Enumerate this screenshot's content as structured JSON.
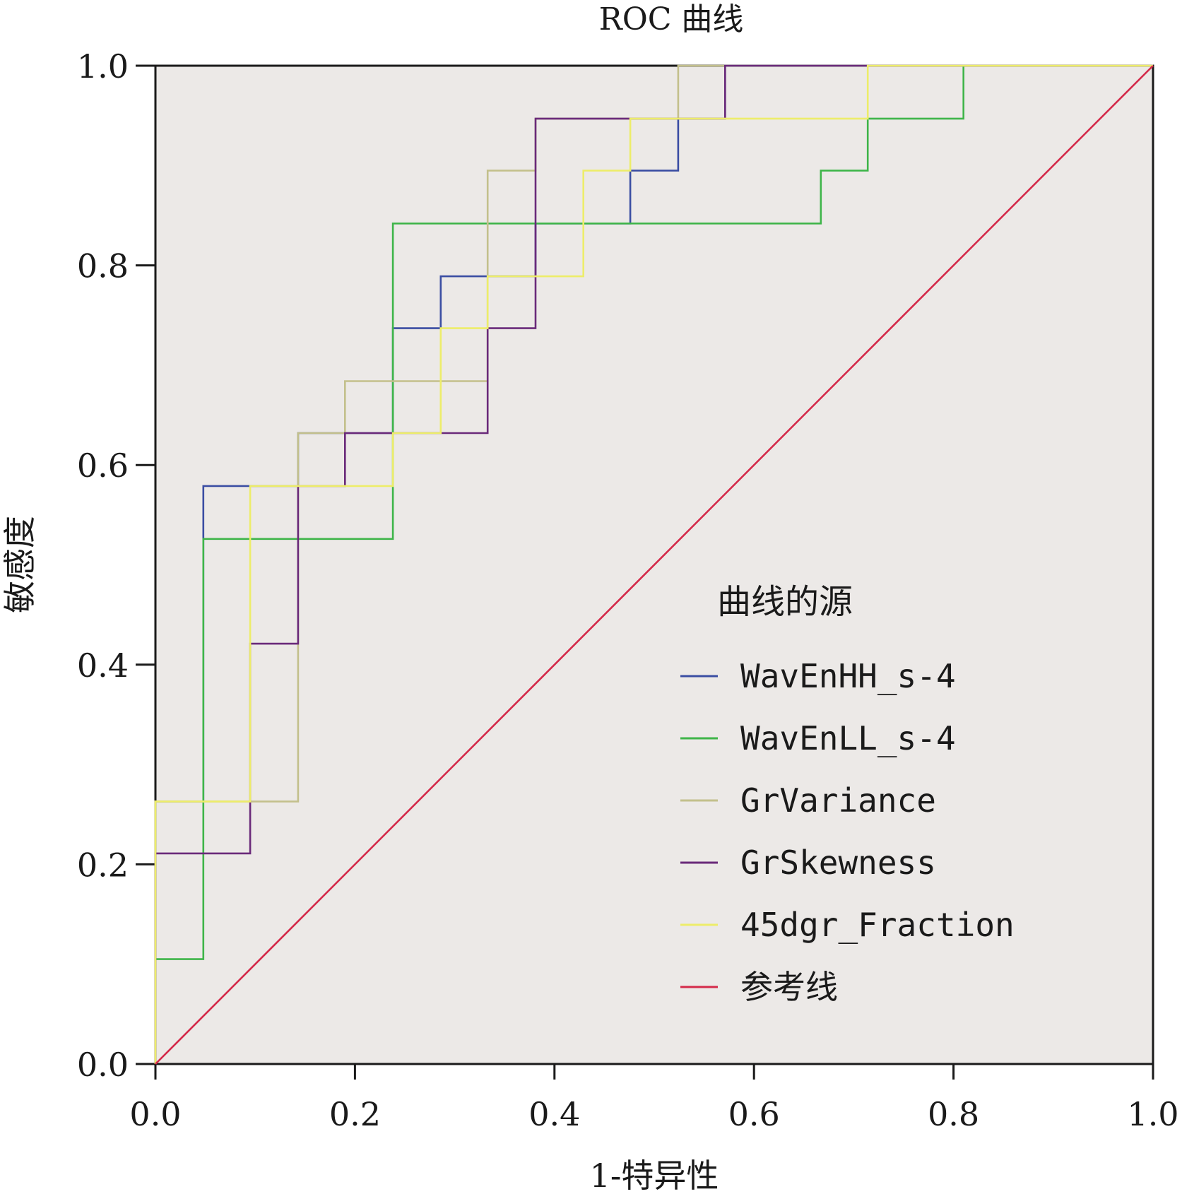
{
  "chart_data": {
    "type": "line",
    "title": "ROC 曲线",
    "xlabel": "1-特异性",
    "ylabel": "敏感度",
    "xlim": [
      0,
      1
    ],
    "ylim": [
      0,
      1
    ],
    "x_ticks": [
      "0.0",
      "0.2",
      "0.4",
      "0.6",
      "0.8",
      "1.0"
    ],
    "y_ticks": [
      "0.0",
      "0.2",
      "0.4",
      "0.6",
      "0.8",
      "1.0"
    ],
    "tick_values": [
      0,
      0.2,
      0.4,
      0.6,
      0.8,
      1.0
    ],
    "grid": false,
    "background": "#ece9e7",
    "legend": {
      "title": "曲线的源",
      "placement": "right-center"
    },
    "series": [
      {
        "name": "WavEnHH_s-4",
        "color": "#3b4ea3",
        "x": [
          0,
          0,
          0.048,
          0.048,
          0.095,
          0.095,
          0.143,
          0.143,
          0.19,
          0.19,
          0.238,
          0.238,
          0.286,
          0.286,
          0.333,
          0.333,
          0.381,
          0.381,
          0.476,
          0.476,
          0.524,
          0.524,
          0.571,
          0.571,
          1.0
        ],
        "y": [
          0,
          0.263,
          0.263,
          0.579,
          0.579,
          0.579,
          0.579,
          0.632,
          0.632,
          0.632,
          0.632,
          0.737,
          0.737,
          0.789,
          0.789,
          0.789,
          0.789,
          0.842,
          0.842,
          0.895,
          0.895,
          0.947,
          0.947,
          1.0,
          1.0
        ]
      },
      {
        "name": "WavEnLL_s-4",
        "color": "#3fb54a",
        "x": [
          0,
          0,
          0.048,
          0.048,
          0.143,
          0.143,
          0.238,
          0.238,
          0.667,
          0.667,
          0.714,
          0.714,
          0.81,
          0.81,
          1.0
        ],
        "y": [
          0,
          0.105,
          0.105,
          0.526,
          0.526,
          0.526,
          0.526,
          0.842,
          0.842,
          0.895,
          0.895,
          0.947,
          0.947,
          1.0,
          1.0
        ]
      },
      {
        "name": "GrVariance",
        "color": "#c3c08c",
        "x": [
          0,
          0,
          0.095,
          0.095,
          0.143,
          0.143,
          0.19,
          0.19,
          0.333,
          0.333,
          0.381,
          0.381,
          0.476,
          0.476,
          0.524,
          0.524,
          1.0
        ],
        "y": [
          0,
          0.263,
          0.263,
          0.263,
          0.263,
          0.632,
          0.632,
          0.684,
          0.684,
          0.895,
          0.895,
          0.947,
          0.947,
          0.947,
          0.947,
          1.0,
          1.0
        ]
      },
      {
        "name": "GrSkewness",
        "color": "#6a2a7a",
        "x": [
          0,
          0,
          0.095,
          0.095,
          0.143,
          0.143,
          0.19,
          0.19,
          0.333,
          0.333,
          0.381,
          0.381,
          0.476,
          0.476,
          0.571,
          0.571,
          1.0
        ],
        "y": [
          0,
          0.211,
          0.211,
          0.421,
          0.421,
          0.579,
          0.579,
          0.632,
          0.632,
          0.737,
          0.737,
          0.947,
          0.947,
          0.947,
          0.947,
          1.0,
          1.0
        ]
      },
      {
        "name": "45dgr_Fraction",
        "color": "#eded6a",
        "x": [
          0,
          0,
          0.095,
          0.095,
          0.238,
          0.238,
          0.286,
          0.286,
          0.333,
          0.333,
          0.429,
          0.429,
          0.476,
          0.476,
          0.714,
          0.714,
          1.0
        ],
        "y": [
          0,
          0.263,
          0.263,
          0.579,
          0.579,
          0.632,
          0.632,
          0.737,
          0.737,
          0.789,
          0.789,
          0.895,
          0.895,
          0.947,
          0.947,
          1.0,
          1.0
        ]
      },
      {
        "name": "参考线",
        "color": "#d42a4a",
        "x": [
          0,
          1
        ],
        "y": [
          0,
          1
        ]
      }
    ]
  }
}
